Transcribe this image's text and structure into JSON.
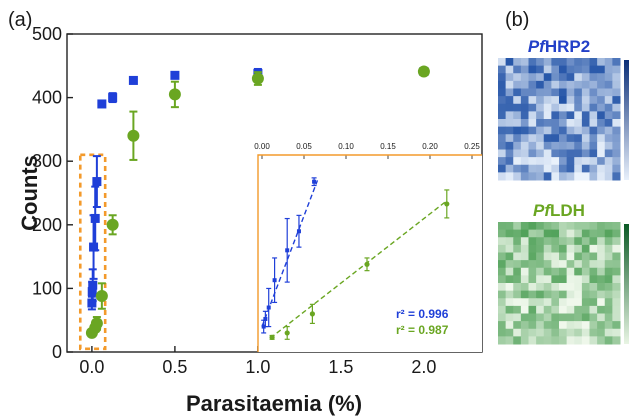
{
  "panel_labels": {
    "a": "(a)",
    "b": "(b)"
  },
  "heatmaps": {
    "blue_title_prefix": "Pf",
    "blue_title_suffix": "HRP2",
    "green_title_prefix": "Pf",
    "green_title_suffix": "LDH",
    "blue_color": "#2340c8",
    "green_color": "#6aa622"
  },
  "chart_data": [
    {
      "type": "scatter",
      "title": "",
      "xlabel": "Parasitaemia (%)",
      "ylabel": "Counts",
      "xlim": [
        -0.15,
        2.35
      ],
      "ylim": [
        0,
        500
      ],
      "x_ticks": [
        "0.0",
        "0.5",
        "1.0",
        "1.5",
        "2.0"
      ],
      "x_tick_values": [
        0,
        0.5,
        1.0,
        1.5,
        2.0
      ],
      "y_ticks": [
        "0",
        "100",
        "200",
        "300",
        "400",
        "500"
      ],
      "y_tick_values": [
        0,
        100,
        200,
        300,
        400,
        500
      ],
      "grid": false,
      "highlight_box": {
        "x_range": [
          -0.07,
          0.08
        ],
        "y_range": [
          5,
          310
        ],
        "color": "#f39a2b"
      },
      "series": [
        {
          "marker": "square",
          "color": "#1f3fd8",
          "points": [
            {
              "x": 0.0,
              "y": 77,
              "err": 10
            },
            {
              "x": 0.002,
              "y": 95,
              "err": 15
            },
            {
              "x": 0.005,
              "y": 105,
              "err": 25
            },
            {
              "x": 0.01,
              "y": 165,
              "err": 50
            },
            {
              "x": 0.02,
              "y": 210,
              "err": 50
            },
            {
              "x": 0.03,
              "y": 268,
              "err": 40
            },
            {
              "x": 0.06,
              "y": 390,
              "err": 4
            },
            {
              "x": 0.125,
              "y": 400,
              "err": 7
            },
            {
              "x": 0.25,
              "y": 427,
              "err": 5
            },
            {
              "x": 0.5,
              "y": 435,
              "err": 4
            },
            {
              "x": 1.0,
              "y": 438,
              "err": 7
            },
            {
              "x": 2.0,
              "y": 441,
              "err": 4
            }
          ]
        },
        {
          "marker": "circle",
          "color": "#6aa622",
          "points": [
            {
              "x": 0.0,
              "y": 30,
              "err": 4
            },
            {
              "x": 0.02,
              "y": 38,
              "err": 6
            },
            {
              "x": 0.03,
              "y": 45,
              "err": 10
            },
            {
              "x": 0.06,
              "y": 88,
              "err": 20
            },
            {
              "x": 0.125,
              "y": 200,
              "err": 15
            },
            {
              "x": 0.25,
              "y": 340,
              "err": 38
            },
            {
              "x": 0.5,
              "y": 405,
              "err": 20
            },
            {
              "x": 1.0,
              "y": 430,
              "err": 10
            },
            {
              "x": 2.0,
              "y": 441,
              "err": 4
            }
          ]
        }
      ]
    },
    {
      "type": "scatter",
      "title": "",
      "inset": true,
      "xlim": [
        0.0,
        0.25
      ],
      "ylim": [
        0,
        310
      ],
      "x_ticks": [
        "0.00",
        "0.05",
        "0.10",
        "0.15",
        "0.20",
        "0.25"
      ],
      "x_tick_values": [
        0.0,
        0.05,
        0.1,
        0.15,
        0.2,
        0.25
      ],
      "frame_color": "#f39a2b",
      "annotations": [
        {
          "text": "r² = 0.996",
          "color": "#1f3fd8"
        },
        {
          "text": "r² = 0.987",
          "color": "#6aa622"
        }
      ],
      "series": [
        {
          "marker": "square",
          "color": "#1f3fd8",
          "fit": {
            "x": [
              0.0,
              0.066
            ],
            "y": [
              40,
              270
            ]
          },
          "points": [
            {
              "x": 0.002,
              "y": 40,
              "err": 10
            },
            {
              "x": 0.004,
              "y": 52,
              "err": 12
            },
            {
              "x": 0.008,
              "y": 70,
              "err": 30
            },
            {
              "x": 0.015,
              "y": 113,
              "err": 35
            },
            {
              "x": 0.03,
              "y": 160,
              "err": 50
            },
            {
              "x": 0.044,
              "y": 190,
              "err": 25
            },
            {
              "x": 0.062,
              "y": 268,
              "err": 6
            }
          ]
        },
        {
          "marker": "circle",
          "color": "#6aa622",
          "fit": {
            "x": [
              0.01,
              0.22
            ],
            "y": [
              22,
              238
            ]
          },
          "points": [
            {
              "x": 0.012,
              "y": 23,
              "err": 3
            },
            {
              "x": 0.03,
              "y": 30,
              "err": 10
            },
            {
              "x": 0.06,
              "y": 60,
              "err": 15
            },
            {
              "x": 0.125,
              "y": 138,
              "err": 10
            },
            {
              "x": 0.22,
              "y": 233,
              "err": 22
            }
          ]
        }
      ]
    }
  ]
}
